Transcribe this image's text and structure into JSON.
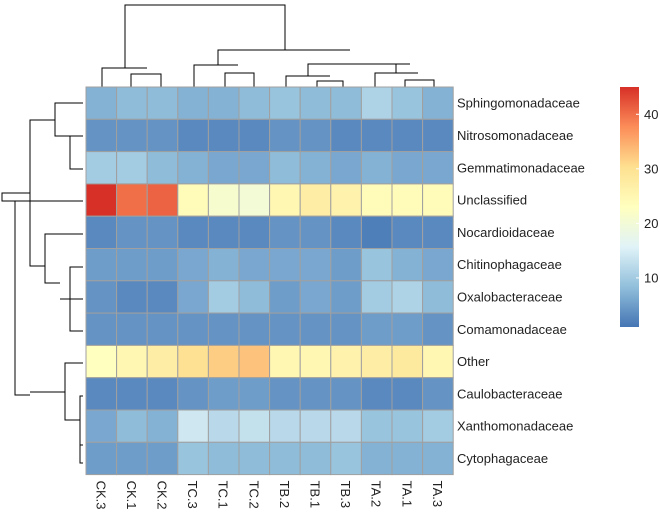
{
  "chart_data": {
    "type": "heatmap",
    "columns": [
      "CK.3",
      "CK.1",
      "CK.2",
      "TC.3",
      "TC.1",
      "TC.2",
      "TB.2",
      "TB.1",
      "TB.3",
      "TA.2",
      "TA.1",
      "TA.3"
    ],
    "rows": [
      "Sphingomonadaceae",
      "Nitrosomonadaceae",
      "Gemmatimonadaceae",
      "Unclassified",
      "Nocardioidaceae",
      "Chitinophagaceae",
      "Oxalobacteraceae",
      "Comamonadaceae",
      "Other",
      "Caulobacteraceae",
      "Xanthomonadaceae",
      "Cytophagaceae"
    ],
    "values": [
      [
        7,
        8,
        8,
        7,
        7,
        8,
        9,
        8,
        8,
        11,
        9,
        7
      ],
      [
        4,
        4,
        4,
        3,
        3,
        3,
        4,
        4,
        3,
        3,
        3,
        3
      ],
      [
        10,
        10,
        8,
        7,
        6,
        6,
        8,
        7,
        6,
        7,
        6,
        6
      ],
      [
        45,
        40,
        41,
        24,
        21,
        20,
        25,
        27,
        26,
        24,
        24,
        24
      ],
      [
        3,
        4,
        4,
        3,
        3,
        3,
        4,
        4,
        3,
        2,
        3,
        3
      ],
      [
        5,
        5,
        5,
        6,
        7,
        6,
        6,
        6,
        5,
        9,
        7,
        6
      ],
      [
        4,
        3,
        3,
        6,
        10,
        8,
        5,
        6,
        5,
        10,
        11,
        8
      ],
      [
        4,
        4,
        4,
        4,
        4,
        4,
        4,
        4,
        4,
        5,
        5,
        4
      ],
      [
        23,
        25,
        27,
        30,
        32,
        33,
        25,
        25,
        26,
        27,
        28,
        25
      ],
      [
        3,
        3,
        3,
        4,
        5,
        5,
        4,
        4,
        4,
        3,
        3,
        4
      ],
      [
        6,
        8,
        7,
        14,
        12,
        13,
        12,
        12,
        12,
        9,
        9,
        10
      ],
      [
        5,
        5,
        5,
        9,
        8,
        8,
        8,
        8,
        9,
        7,
        7,
        7
      ]
    ],
    "color_scale": {
      "min": 1,
      "max": 45,
      "stops": [
        "#4575b4",
        "#91bfdb",
        "#e0f3f8",
        "#ffffbf",
        "#fee090",
        "#fc8d59",
        "#d73027"
      ],
      "ticks": [
        10,
        20,
        30,
        40
      ]
    },
    "cell_border_color": "#a0a0a0",
    "row_dendrogram": true,
    "column_dendrogram": true,
    "legend_position": "right"
  }
}
